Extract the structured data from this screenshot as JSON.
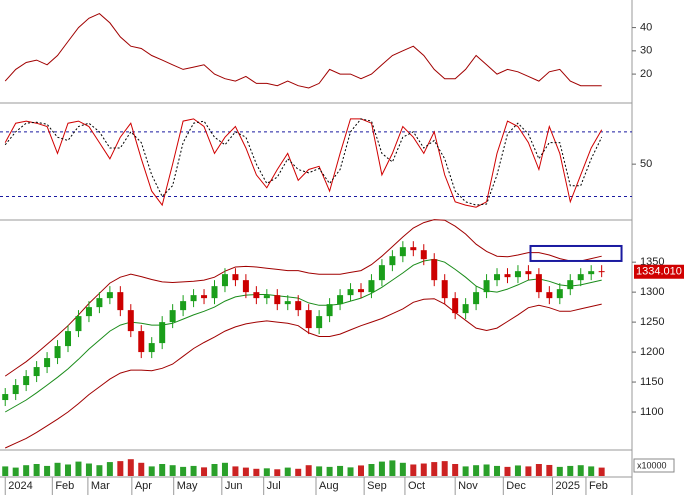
{
  "chart_data": [
    {
      "type": "line",
      "xlim": [
        -0.5,
        59.9
      ],
      "ylim": [
        8,
        51
      ],
      "yticks": [
        20,
        30,
        40
      ],
      "series": [
        {
          "color": "#a00000",
          "values": [
            17,
            22,
            25,
            26,
            24,
            28,
            34,
            40,
            44,
            46,
            42,
            36,
            32,
            31,
            28,
            26,
            24,
            22,
            23,
            24,
            20,
            18,
            17,
            19,
            16,
            16,
            15,
            17,
            15,
            14,
            16,
            22,
            20,
            20,
            18,
            20,
            24,
            28,
            30,
            32,
            28,
            22,
            18,
            18,
            22,
            28,
            24,
            20,
            22,
            21,
            19,
            17,
            21,
            22,
            17,
            15,
            15,
            15
          ]
        }
      ]
    },
    {
      "type": "line",
      "xlim": [
        -0.5,
        59.9
      ],
      "ylim": [
        0,
        104
      ],
      "yticks": [
        50
      ],
      "hlines": [
        80,
        20
      ],
      "hline_color": "#1a1aa0",
      "series": [
        {
          "color": "#d00000",
          "values": [
            70,
            88,
            90,
            88,
            85,
            60,
            88,
            90,
            85,
            70,
            55,
            75,
            88,
            55,
            25,
            12,
            50,
            90,
            92,
            85,
            60,
            75,
            85,
            65,
            40,
            28,
            45,
            60,
            35,
            45,
            48,
            25,
            60,
            92,
            92,
            88,
            40,
            60,
            85,
            75,
            60,
            80,
            40,
            15,
            12,
            10,
            15,
            60,
            90,
            85,
            70,
            45,
            85,
            60,
            15,
            40,
            65,
            82
          ]
        },
        {
          "color": "#000000",
          "values": [
            68,
            80,
            88,
            89,
            87,
            75,
            72,
            85,
            88,
            80,
            65,
            65,
            80,
            70,
            40,
            20,
            30,
            70,
            88,
            90,
            75,
            68,
            80,
            75,
            50,
            32,
            38,
            55,
            45,
            42,
            46,
            32,
            45,
            80,
            92,
            90,
            60,
            52,
            75,
            80,
            65,
            72,
            55,
            25,
            15,
            12,
            13,
            40,
            78,
            88,
            78,
            55,
            70,
            70,
            30,
            30,
            55,
            75
          ]
        }
      ]
    },
    {
      "type": "candlestick",
      "xlim": [
        -0.5,
        59.9
      ],
      "ylim": [
        1040,
        1417
      ],
      "yticks": [
        1100,
        1150,
        1200,
        1250,
        1300,
        1350
      ],
      "up_color": "#1a9e1a",
      "down_color": "#cc0000",
      "open": [
        1120,
        1130,
        1145,
        1160,
        1175,
        1190,
        1210,
        1235,
        1260,
        1275,
        1290,
        1300,
        1270,
        1235,
        1200,
        1215,
        1250,
        1270,
        1285,
        1295,
        1290,
        1310,
        1330,
        1320,
        1300,
        1290,
        1295,
        1280,
        1285,
        1270,
        1240,
        1260,
        1280,
        1295,
        1305,
        1300,
        1320,
        1345,
        1360,
        1375,
        1370,
        1355,
        1320,
        1290,
        1265,
        1280,
        1300,
        1320,
        1330,
        1325,
        1335,
        1330,
        1300,
        1290,
        1305,
        1320,
        1330,
        1335
      ],
      "high": [
        1140,
        1155,
        1170,
        1185,
        1200,
        1220,
        1245,
        1270,
        1285,
        1300,
        1310,
        1310,
        1280,
        1245,
        1225,
        1260,
        1280,
        1295,
        1305,
        1305,
        1320,
        1340,
        1340,
        1330,
        1310,
        1305,
        1305,
        1295,
        1295,
        1280,
        1270,
        1290,
        1305,
        1315,
        1315,
        1330,
        1355,
        1370,
        1385,
        1385,
        1380,
        1365,
        1330,
        1300,
        1290,
        1310,
        1330,
        1340,
        1340,
        1345,
        1345,
        1340,
        1310,
        1315,
        1330,
        1340,
        1345,
        1345
      ],
      "low": [
        1110,
        1120,
        1135,
        1150,
        1165,
        1180,
        1200,
        1225,
        1250,
        1265,
        1280,
        1260,
        1225,
        1190,
        1190,
        1205,
        1240,
        1260,
        1275,
        1280,
        1280,
        1300,
        1310,
        1290,
        1280,
        1280,
        1270,
        1270,
        1260,
        1230,
        1230,
        1250,
        1270,
        1285,
        1290,
        1290,
        1310,
        1335,
        1350,
        1360,
        1345,
        1310,
        1280,
        1255,
        1255,
        1270,
        1290,
        1310,
        1315,
        1315,
        1320,
        1290,
        1280,
        1280,
        1295,
        1310,
        1320,
        1325
      ],
      "close": [
        1130,
        1145,
        1160,
        1175,
        1190,
        1210,
        1235,
        1260,
        1275,
        1290,
        1300,
        1270,
        1235,
        1200,
        1215,
        1250,
        1270,
        1285,
        1295,
        1290,
        1310,
        1330,
        1320,
        1300,
        1290,
        1295,
        1280,
        1285,
        1270,
        1240,
        1260,
        1280,
        1295,
        1305,
        1300,
        1320,
        1345,
        1360,
        1375,
        1370,
        1355,
        1320,
        1290,
        1265,
        1280,
        1300,
        1320,
        1330,
        1325,
        1335,
        1330,
        1300,
        1290,
        1305,
        1320,
        1330,
        1335,
        1334.01
      ],
      "series": [
        {
          "color": "#a00000",
          "values": [
            1160,
            1172,
            1184,
            1198,
            1213,
            1228,
            1244,
            1262,
            1281,
            1298,
            1315,
            1325,
            1330,
            1326,
            1321,
            1317,
            1316,
            1317,
            1318,
            1320,
            1325,
            1335,
            1342,
            1343,
            1342,
            1340,
            1338,
            1336,
            1336,
            1332,
            1330,
            1330,
            1330,
            1333,
            1336,
            1346,
            1360,
            1376,
            1392,
            1407,
            1416,
            1421,
            1420,
            1410,
            1397,
            1380,
            1368,
            1360,
            1359,
            1362,
            1366,
            1366,
            1362,
            1356,
            1352,
            1352,
            1356,
            1360
          ]
        },
        {
          "color": "#1a8c1a",
          "values": [
            1100,
            1110,
            1120,
            1132,
            1145,
            1158,
            1172,
            1188,
            1205,
            1220,
            1235,
            1245,
            1250,
            1248,
            1245,
            1245,
            1248,
            1255,
            1262,
            1268,
            1275,
            1285,
            1292,
            1295,
            1296,
            1296,
            1294,
            1292,
            1290,
            1282,
            1278,
            1278,
            1280,
            1285,
            1290,
            1298,
            1308,
            1320,
            1332,
            1345,
            1352,
            1355,
            1350,
            1338,
            1325,
            1310,
            1302,
            1300,
            1305,
            1312,
            1320,
            1322,
            1318,
            1312,
            1310,
            1312,
            1316,
            1320
          ]
        },
        {
          "color": "#a00000",
          "values": [
            1040,
            1048,
            1056,
            1066,
            1077,
            1088,
            1100,
            1114,
            1129,
            1142,
            1155,
            1165,
            1170,
            1170,
            1169,
            1173,
            1180,
            1193,
            1206,
            1216,
            1225,
            1235,
            1242,
            1247,
            1250,
            1252,
            1250,
            1248,
            1244,
            1232,
            1226,
            1226,
            1230,
            1237,
            1244,
            1250,
            1256,
            1264,
            1272,
            1283,
            1288,
            1289,
            1280,
            1266,
            1253,
            1240,
            1236,
            1240,
            1251,
            1262,
            1274,
            1278,
            1274,
            1268,
            1268,
            1272,
            1276,
            1280
          ]
        }
      ],
      "price_label": {
        "value": 1334.01,
        "label": "1334.010"
      },
      "highlight_box": {
        "xlim": [
          50.2,
          58.9
        ],
        "ylim": [
          1352,
          1377
        ],
        "color": "#1a1aa0"
      }
    },
    {
      "type": "bar",
      "xlim": [
        -0.5,
        59.9
      ],
      "ylim": [
        0,
        100
      ],
      "unit_label": "x10000",
      "values": [
        40,
        35,
        45,
        50,
        42,
        55,
        48,
        60,
        52,
        45,
        58,
        62,
        70,
        55,
        40,
        50,
        45,
        38,
        42,
        36,
        50,
        55,
        40,
        35,
        30,
        32,
        28,
        35,
        30,
        45,
        40,
        38,
        42,
        36,
        44,
        50,
        60,
        65,
        55,
        48,
        52,
        58,
        62,
        50,
        40,
        45,
        48,
        42,
        38,
        44,
        40,
        50,
        46,
        38,
        42,
        45,
        40,
        35
      ],
      "xticks": [
        {
          "value": 0,
          "label": "2024"
        },
        {
          "value": 4.5,
          "label": "Feb"
        },
        {
          "value": 7.9,
          "label": "Mar"
        },
        {
          "value": 12.1,
          "label": "Apr"
        },
        {
          "value": 16.1,
          "label": "May"
        },
        {
          "value": 20.7,
          "label": "Jun"
        },
        {
          "value": 24.7,
          "label": "Jul"
        },
        {
          "value": 29.7,
          "label": "Aug"
        },
        {
          "value": 34.3,
          "label": "Sep"
        },
        {
          "value": 38.2,
          "label": "Oct"
        },
        {
          "value": 43,
          "label": "Nov"
        },
        {
          "value": 47.6,
          "label": "Dec"
        },
        {
          "value": 52.3,
          "label": "2025"
        },
        {
          "value": 55.5,
          "label": "Feb"
        }
      ]
    }
  ]
}
